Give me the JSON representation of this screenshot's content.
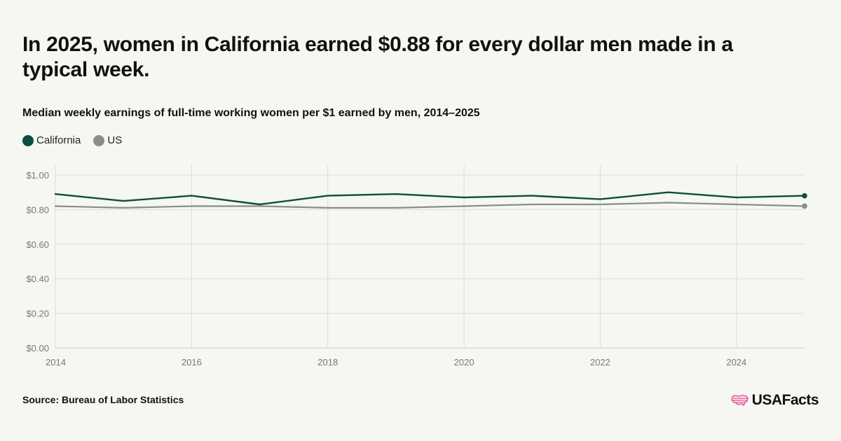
{
  "headline": "In 2025, women in California earned $0.88 for every dollar men made in a typical week.",
  "source": "Source: Bureau of Labor Statistics",
  "brand": "USAFacts",
  "brand_icon": "us-map-stripes-icon",
  "colors": {
    "background": "#f6f6f2",
    "california": "#0b4f3e",
    "us": "#8c8c88",
    "brand_accent": "#e8479a",
    "grid": "#dcdcd8"
  },
  "chart_data": {
    "type": "line",
    "subtitle": "Median weekly earnings of full-time working women per $1 earned by men, 2014–2025",
    "x": [
      2014,
      2015,
      2016,
      2017,
      2018,
      2019,
      2020,
      2021,
      2022,
      2023,
      2024,
      2025
    ],
    "series": [
      {
        "name": "California",
        "color": "#0b4f3e",
        "values": [
          0.89,
          0.85,
          0.88,
          0.83,
          0.88,
          0.89,
          0.87,
          0.88,
          0.86,
          0.9,
          0.87,
          0.88
        ]
      },
      {
        "name": "US",
        "color": "#8c8c88",
        "values": [
          0.82,
          0.81,
          0.82,
          0.82,
          0.81,
          0.81,
          0.82,
          0.83,
          0.83,
          0.84,
          0.83,
          0.82
        ]
      }
    ],
    "ylim": [
      0,
      1.0
    ],
    "xlim": [
      2014,
      2025
    ],
    "y_ticks": [
      "$0.00",
      "$0.20",
      "$0.40",
      "$0.60",
      "$0.80",
      "$1.00"
    ],
    "y_tick_values": [
      0,
      0.2,
      0.4,
      0.6,
      0.8,
      1.0
    ],
    "x_ticks": [
      "2014",
      "2016",
      "2018",
      "2020",
      "2022",
      "2024"
    ],
    "x_tick_values": [
      2014,
      2016,
      2018,
      2020,
      2022,
      2024
    ],
    "grid": true,
    "legend_position": "top-left"
  }
}
